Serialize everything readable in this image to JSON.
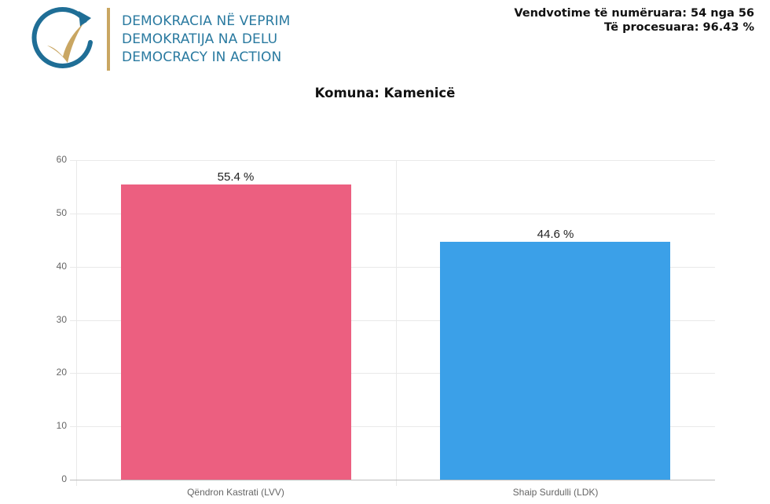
{
  "header": {
    "logo": {
      "icon": "circular-arrow-checkmark-icon",
      "colors": {
        "ring": "#1f6e96",
        "check": "#c9a662"
      },
      "lines": [
        "DEMOKRACIA NË VEPRIM",
        "DEMOKRATIJA NA DELU",
        "DEMOCRACY IN ACTION"
      ]
    },
    "stats": {
      "counted": "Vendvotime të numëruara: 54 nga 56",
      "processed": "Të procesuara: 96.43 %"
    }
  },
  "chart_title": "Komuna: Kamenicë",
  "chart_data": {
    "type": "bar",
    "title": "Komuna: Kamenicë",
    "categories": [
      "Qëndron Kastrati (LVV)",
      "Shaip Surdulli (LDK)"
    ],
    "values": [
      55.4,
      44.6
    ],
    "value_labels": [
      "55.4 %",
      "44.6 %"
    ],
    "colors": [
      "#ec5f80",
      "#3ba0e8"
    ],
    "xlabel": "",
    "ylabel": "",
    "ylim": [
      0,
      60
    ],
    "yticks": [
      0,
      10,
      20,
      30,
      40,
      50,
      60
    ],
    "grid": true,
    "legend": null
  }
}
